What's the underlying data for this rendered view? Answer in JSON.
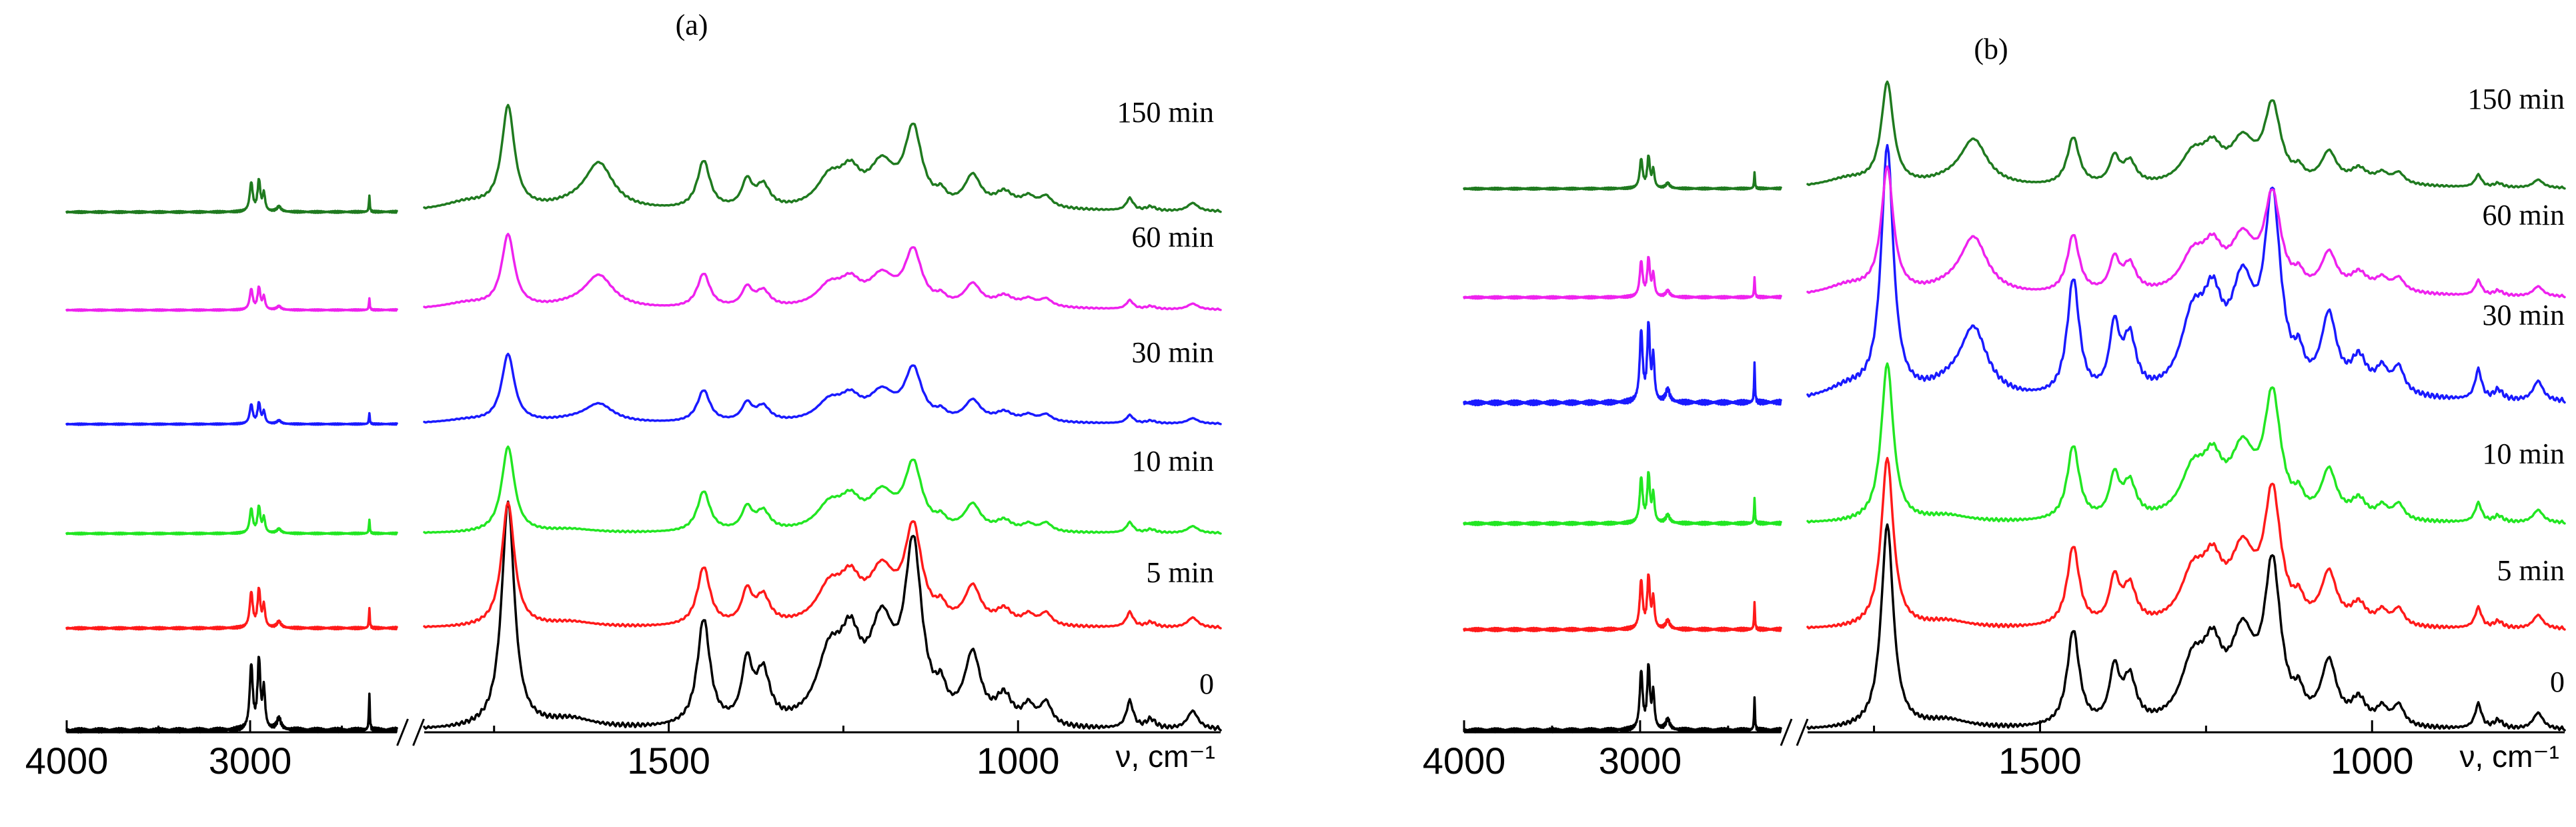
{
  "chart_data": [
    {
      "type": "line",
      "panel_label": "(a)",
      "x_unit_label": "ν, cm⁻¹",
      "x_break": [
        2200,
        1850
      ],
      "x_ranges": [
        [
          4000,
          2200
        ],
        [
          1850,
          710
        ]
      ],
      "tick_labels": [
        "4000",
        "3000",
        "1500",
        "1000"
      ],
      "tick_values": [
        4000,
        3000,
        1500,
        1000
      ],
      "minor_ticks": [
        3500,
        2500,
        1750,
        1250
      ],
      "series": [
        {
          "name": "0",
          "label": "0",
          "color": "#000000",
          "scale": 1.0,
          "level": 0
        },
        {
          "name": "5 min",
          "label": "5 min",
          "color": "#ff1a1a",
          "scale": 0.55,
          "level": 1
        },
        {
          "name": "10 min",
          "label": "10 min",
          "color": "#22e622",
          "scale": 0.38,
          "level": 2
        },
        {
          "name": "30 min",
          "label": "30 min",
          "color": "#1a1aff",
          "scale": 0.3,
          "level": 3
        },
        {
          "name": "60 min",
          "label": "60 min",
          "color": "#ee22ee",
          "scale": 0.32,
          "level": 4
        },
        {
          "name": "150 min",
          "label": "150 min",
          "color": "#1f7a1f",
          "scale": 0.45,
          "level": 5
        }
      ]
    },
    {
      "type": "line",
      "panel_label": "(b)",
      "x_unit_label": "ν, cm⁻¹",
      "x_break": [
        2200,
        1850
      ],
      "x_ranges": [
        [
          4000,
          2200
        ],
        [
          1850,
          710
        ]
      ],
      "tick_labels": [
        "4000",
        "3000",
        "1500",
        "1000"
      ],
      "tick_values": [
        4000,
        3000,
        1500,
        1000
      ],
      "minor_ticks": [
        3500,
        2500,
        1750,
        1250
      ],
      "series": [
        {
          "name": "0",
          "label": "0",
          "color": "#000000",
          "scale": 0.9,
          "level": 0
        },
        {
          "name": "5 min",
          "label": "5 min",
          "color": "#ff1a1a",
          "scale": 0.75,
          "level": 1
        },
        {
          "name": "10 min",
          "label": "10 min",
          "color": "#22e622",
          "scale": 0.7,
          "level": 2
        },
        {
          "name": "30 min",
          "label": "30 min",
          "color": "#1a1aff",
          "scale": 1.1,
          "level": 3
        },
        {
          "name": "60 min",
          "label": "60 min",
          "color": "#ee22ee",
          "scale": 0.55,
          "level": 4
        },
        {
          "name": "150 min",
          "label": "150 min",
          "color": "#1f7a1f",
          "scale": 0.45,
          "level": 5
        }
      ]
    }
  ]
}
